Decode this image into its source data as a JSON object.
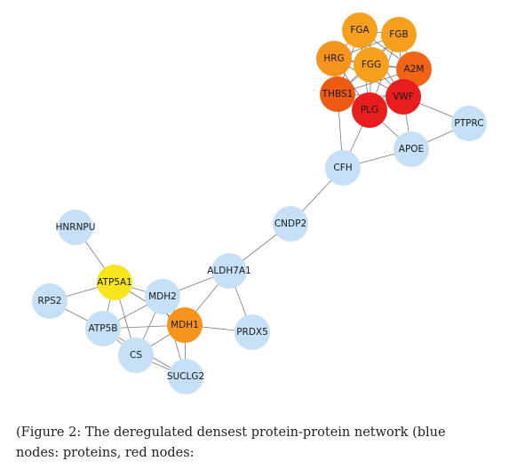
{
  "network": {
    "nodes": [
      {
        "id": "FGA",
        "label": "FGA",
        "color": "#F7A01E"
      },
      {
        "id": "FGB",
        "label": "FGB",
        "color": "#F7A01E"
      },
      {
        "id": "HRG",
        "label": "HRG",
        "color": "#F7941E"
      },
      {
        "id": "FGG",
        "label": "FGG",
        "color": "#F7A01E"
      },
      {
        "id": "A2M",
        "label": "A2M",
        "color": "#F06416"
      },
      {
        "id": "THBS1",
        "label": "THBS1",
        "color": "#EC5A14"
      },
      {
        "id": "VWF",
        "label": "VWF",
        "color": "#E81E1E"
      },
      {
        "id": "PLG",
        "label": "PLG",
        "color": "#E81E1E"
      },
      {
        "id": "PTPRC",
        "label": "PTPRC",
        "color": "#C6E0F7"
      },
      {
        "id": "APOE",
        "label": "APOE",
        "color": "#C6E0F7"
      },
      {
        "id": "CFH",
        "label": "CFH",
        "color": "#C6E0F7"
      },
      {
        "id": "CNDP2",
        "label": "CNDP2",
        "color": "#C6E0F7"
      },
      {
        "id": "HNRNPU",
        "label": "HNRNPU",
        "color": "#C6E0F7"
      },
      {
        "id": "ALDH7A1",
        "label": "ALDH7A1",
        "color": "#C6E0F7"
      },
      {
        "id": "ATP5A1",
        "label": "ATP5A1",
        "color": "#F7E61E"
      },
      {
        "id": "MDH2",
        "label": "MDH2",
        "color": "#C6E0F7"
      },
      {
        "id": "RPS2",
        "label": "RPS2",
        "color": "#C6E0F7"
      },
      {
        "id": "ATP5B",
        "label": "ATP5B",
        "color": "#C6E0F7"
      },
      {
        "id": "MDH1",
        "label": "MDH1",
        "color": "#F7941E"
      },
      {
        "id": "PRDX5",
        "label": "PRDX5",
        "color": "#C6E0F7"
      },
      {
        "id": "CS",
        "label": "CS",
        "color": "#C6E0F7"
      },
      {
        "id": "SUCLG2",
        "label": "SUCLG2",
        "color": "#C6E0F7"
      }
    ],
    "edges": [
      [
        "FGA",
        "FGB"
      ],
      [
        "FGA",
        "HRG"
      ],
      [
        "FGA",
        "FGG"
      ],
      [
        "FGA",
        "A2M"
      ],
      [
        "FGA",
        "VWF"
      ],
      [
        "FGA",
        "PLG"
      ],
      [
        "FGA",
        "THBS1"
      ],
      [
        "FGB",
        "HRG"
      ],
      [
        "FGB",
        "FGG"
      ],
      [
        "FGB",
        "A2M"
      ],
      [
        "FGB",
        "VWF"
      ],
      [
        "FGB",
        "PLG"
      ],
      [
        "FGB",
        "THBS1"
      ],
      [
        "HRG",
        "FGG"
      ],
      [
        "HRG",
        "THBS1"
      ],
      [
        "HRG",
        "PLG"
      ],
      [
        "HRG",
        "A2M"
      ],
      [
        "HRG",
        "VWF"
      ],
      [
        "FGG",
        "A2M"
      ],
      [
        "FGG",
        "THBS1"
      ],
      [
        "FGG",
        "VWF"
      ],
      [
        "FGG",
        "PLG"
      ],
      [
        "A2M",
        "VWF"
      ],
      [
        "A2M",
        "PLG"
      ],
      [
        "A2M",
        "THBS1"
      ],
      [
        "THBS1",
        "PLG"
      ],
      [
        "THBS1",
        "VWF"
      ],
      [
        "THBS1",
        "CFH"
      ],
      [
        "VWF",
        "PLG"
      ],
      [
        "VWF",
        "PTPRC"
      ],
      [
        "VWF",
        "APOE"
      ],
      [
        "PLG",
        "APOE"
      ],
      [
        "PLG",
        "CFH"
      ],
      [
        "PTPRC",
        "APOE"
      ],
      [
        "APOE",
        "CFH"
      ],
      [
        "CFH",
        "CNDP2"
      ],
      [
        "CNDP2",
        "ALDH7A1"
      ],
      [
        "HNRNPU",
        "ATP5A1"
      ],
      [
        "ATP5A1",
        "MDH2"
      ],
      [
        "ATP5A1",
        "RPS2"
      ],
      [
        "ATP5A1",
        "ATP5B"
      ],
      [
        "ATP5A1",
        "CS"
      ],
      [
        "ATP5A1",
        "MDH1"
      ],
      [
        "MDH2",
        "MDH1"
      ],
      [
        "MDH2",
        "ATP5B"
      ],
      [
        "MDH2",
        "CS"
      ],
      [
        "MDH2",
        "ALDH7A1"
      ],
      [
        "MDH2",
        "SUCLG2"
      ],
      [
        "RPS2",
        "ATP5B"
      ],
      [
        "ATP5B",
        "CS"
      ],
      [
        "ATP5B",
        "MDH1"
      ],
      [
        "ATP5B",
        "SUCLG2"
      ],
      [
        "MDH1",
        "CS"
      ],
      [
        "MDH1",
        "SUCLG2"
      ],
      [
        "MDH1",
        "PRDX5"
      ],
      [
        "MDH1",
        "ALDH7A1"
      ],
      [
        "ALDH7A1",
        "PRDX5"
      ],
      [
        "CS",
        "SUCLG2"
      ]
    ]
  },
  "caption": {
    "line1": "(Figure 2: The deregulated densest protein-protein network (blue",
    "line2": "nodes: proteins, red nodes:"
  }
}
